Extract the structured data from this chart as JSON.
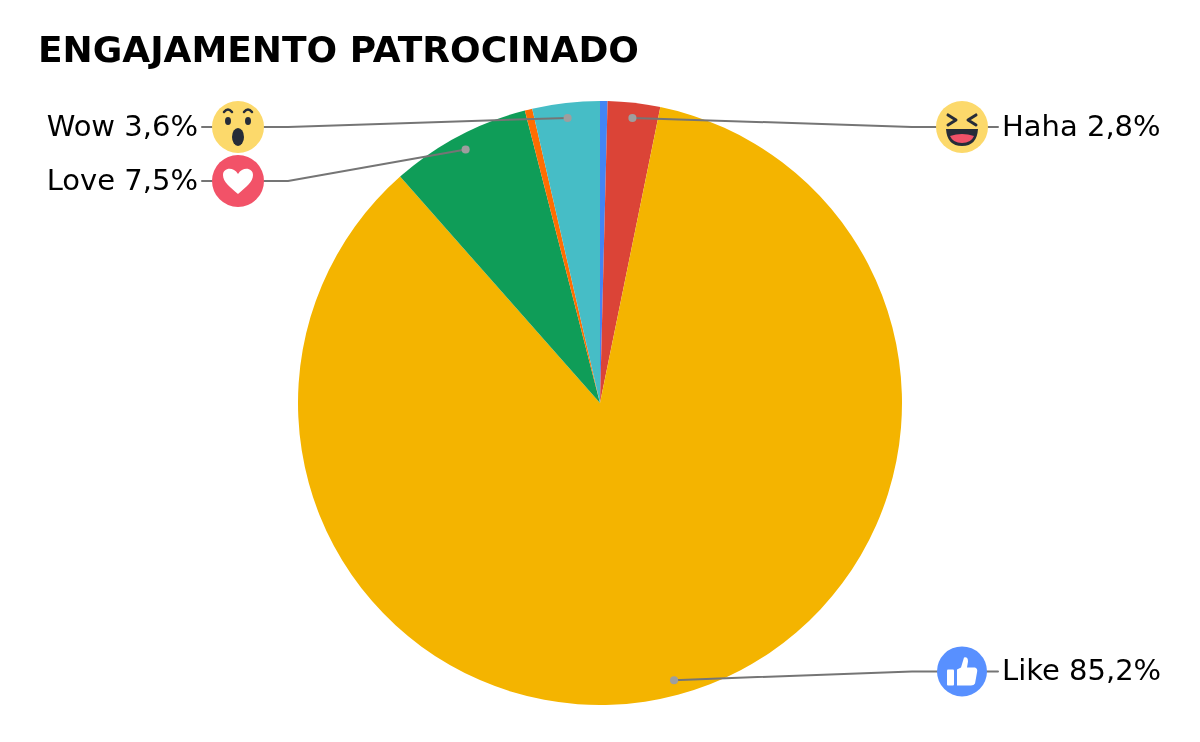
{
  "chart_data": {
    "type": "pie",
    "title": "ENGAJAMENTO PATROCINADO",
    "categories": [
      null,
      "Haha",
      "Like",
      "Love",
      null,
      "Wow"
    ],
    "values": [
      0.4,
      2.8,
      85.2,
      7.5,
      0.4,
      3.6
    ],
    "colors": [
      "#4285f4",
      "#db4437",
      "#f4b400",
      "#0f9d58",
      "#ff6d01",
      "#46bdc6"
    ],
    "value_labels": [
      null,
      "2,8%",
      "85,2%",
      "7,5%",
      null,
      "3,6%"
    ]
  }
}
